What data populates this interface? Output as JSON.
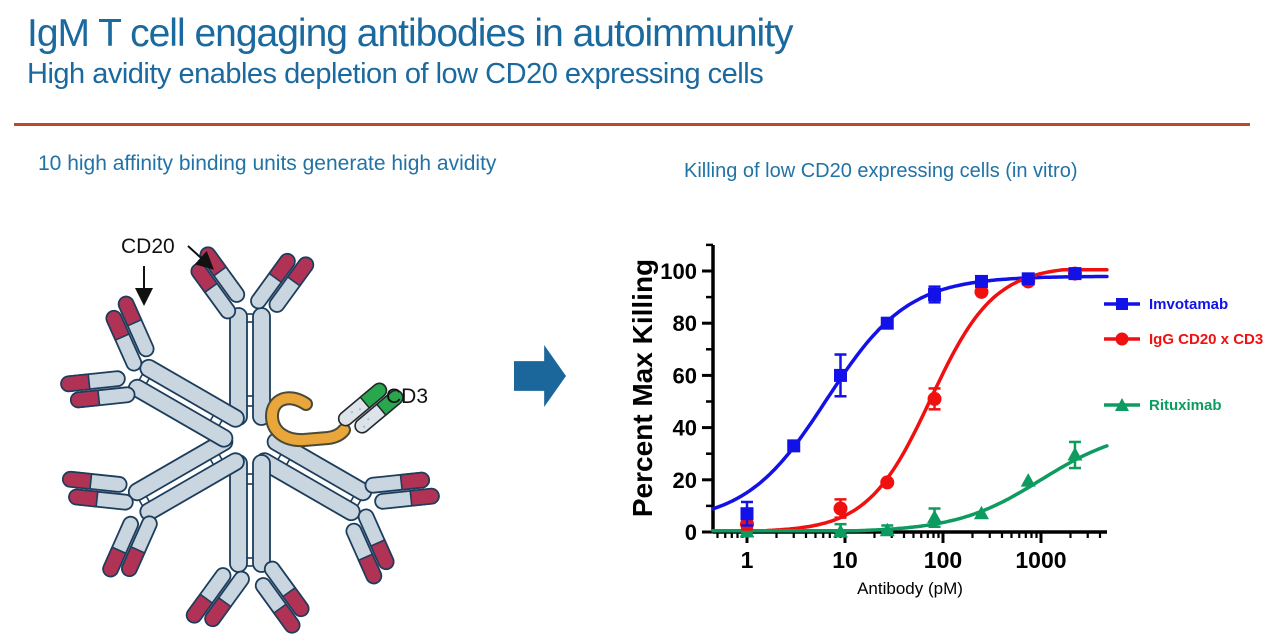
{
  "slide": {
    "title": "IgM T cell engaging antibodies in autoimmunity",
    "subtitle": "High avidity enables depletion of low CD20 expressing cells",
    "left_heading": "10 high affinity binding units generate high avidity",
    "right_heading": "Killing of low CD20 expressing cells (in vitro)"
  },
  "diagram": {
    "labels": {
      "cd20": "CD20",
      "cd3": "CD3"
    },
    "colors": {
      "body_fill": "#C9D5DF",
      "outline": "#1C3D5C",
      "cd20_tip": "#B03355",
      "j_chain": "#E8A63B",
      "cd3_tip": "#28A74D"
    }
  },
  "flow_arrow_color": "#1B679C",
  "chart_data": {
    "type": "scatter",
    "title": "Killing of low CD20 expressing cells (in vitro)",
    "xlabel": "Antibody (pM)",
    "ylabel": "Percent Max Killing",
    "xscale": "log",
    "xlim": [
      0.45,
      4700
    ],
    "ylim": [
      0,
      110
    ],
    "xticks": [
      1,
      10,
      100,
      1000
    ],
    "yticks": [
      0,
      20,
      40,
      60,
      80,
      100
    ],
    "grid": false,
    "legend_position": "right",
    "series": [
      {
        "name": "Imvotamab",
        "color": "#1212E8",
        "marker": "square",
        "x": [
          1,
          3,
          9,
          27,
          82,
          247,
          741,
          2222
        ],
        "y": [
          7,
          33,
          60,
          80,
          91,
          96,
          97,
          99
        ],
        "err": [
          4.5,
          0,
          8,
          0,
          3,
          0,
          0,
          0
        ],
        "fit": {
          "bottom": 3.5,
          "top": 98,
          "ec50": 6.5,
          "hill": 1.05
        }
      },
      {
        "name": "IgG CD20 x CD3",
        "color": "#F01010",
        "marker": "circle",
        "x": [
          1,
          9,
          27,
          82,
          247,
          741,
          2222
        ],
        "y": [
          3,
          9,
          19,
          51,
          92,
          96,
          99
        ],
        "err": [
          2,
          3.5,
          0,
          4,
          0,
          0,
          0
        ],
        "fit": {
          "bottom": 0,
          "top": 102,
          "ec50": 75,
          "hill": 1.35
        }
      },
      {
        "name": "Rituximab",
        "color": "#0D9B5F",
        "marker": "triangle",
        "x": [
          1,
          9,
          27,
          82,
          247,
          741,
          2222
        ],
        "y": [
          0,
          0,
          0.5,
          5.5,
          7,
          19.5,
          29.5
        ],
        "err": [
          1.5,
          3,
          2,
          3.5,
          0,
          0,
          5
        ],
        "fit": {
          "bottom": 0,
          "top": 40,
          "ec50": 1000,
          "hill": 1
        }
      }
    ]
  }
}
